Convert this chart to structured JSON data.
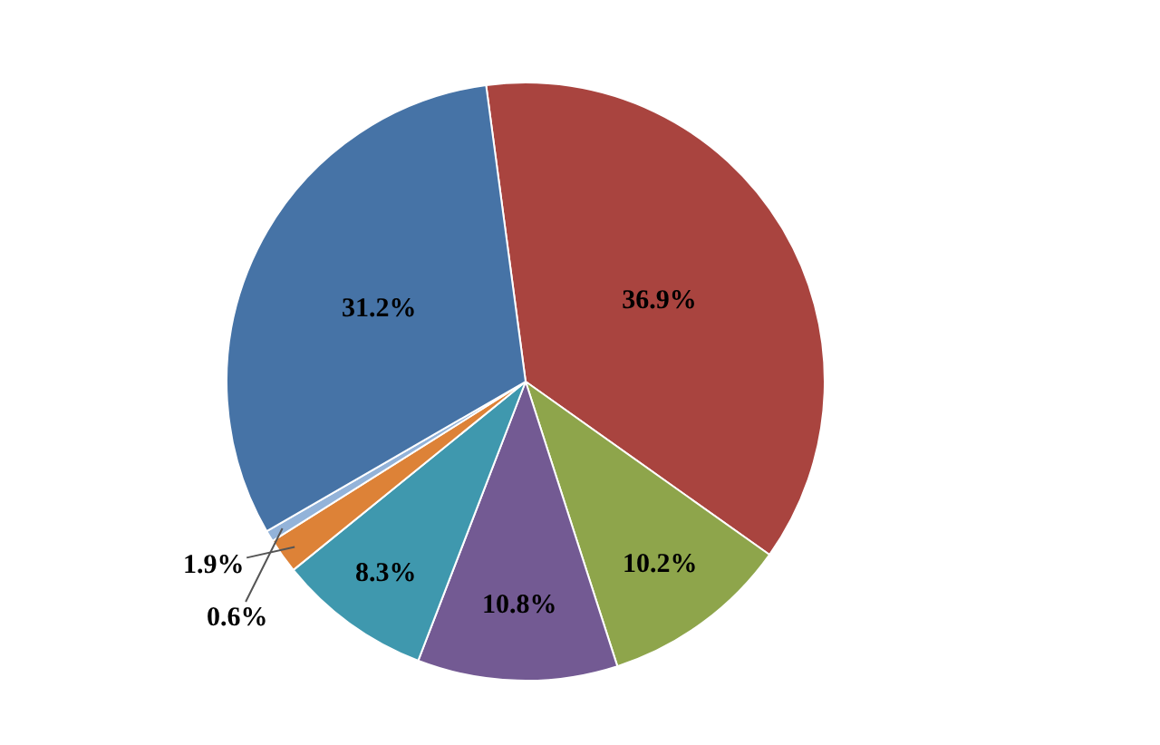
{
  "chart_data": {
    "type": "pie",
    "categories": [
      null,
      null,
      null,
      null,
      null,
      null,
      null
    ],
    "values": [
      36.9,
      10.2,
      10.8,
      8.3,
      1.9,
      0.6,
      31.2
    ],
    "colors": [
      "#a9443f",
      "#8ea54b",
      "#735a93",
      "#3f98ae",
      "#dd8237",
      "#93b3d9",
      "#4673a6"
    ],
    "value_labels": [
      "36.9%",
      "10.2%",
      "10.8%",
      "8.3%",
      "1.9%",
      "0.6%",
      "31.2%"
    ],
    "legend": false
  }
}
